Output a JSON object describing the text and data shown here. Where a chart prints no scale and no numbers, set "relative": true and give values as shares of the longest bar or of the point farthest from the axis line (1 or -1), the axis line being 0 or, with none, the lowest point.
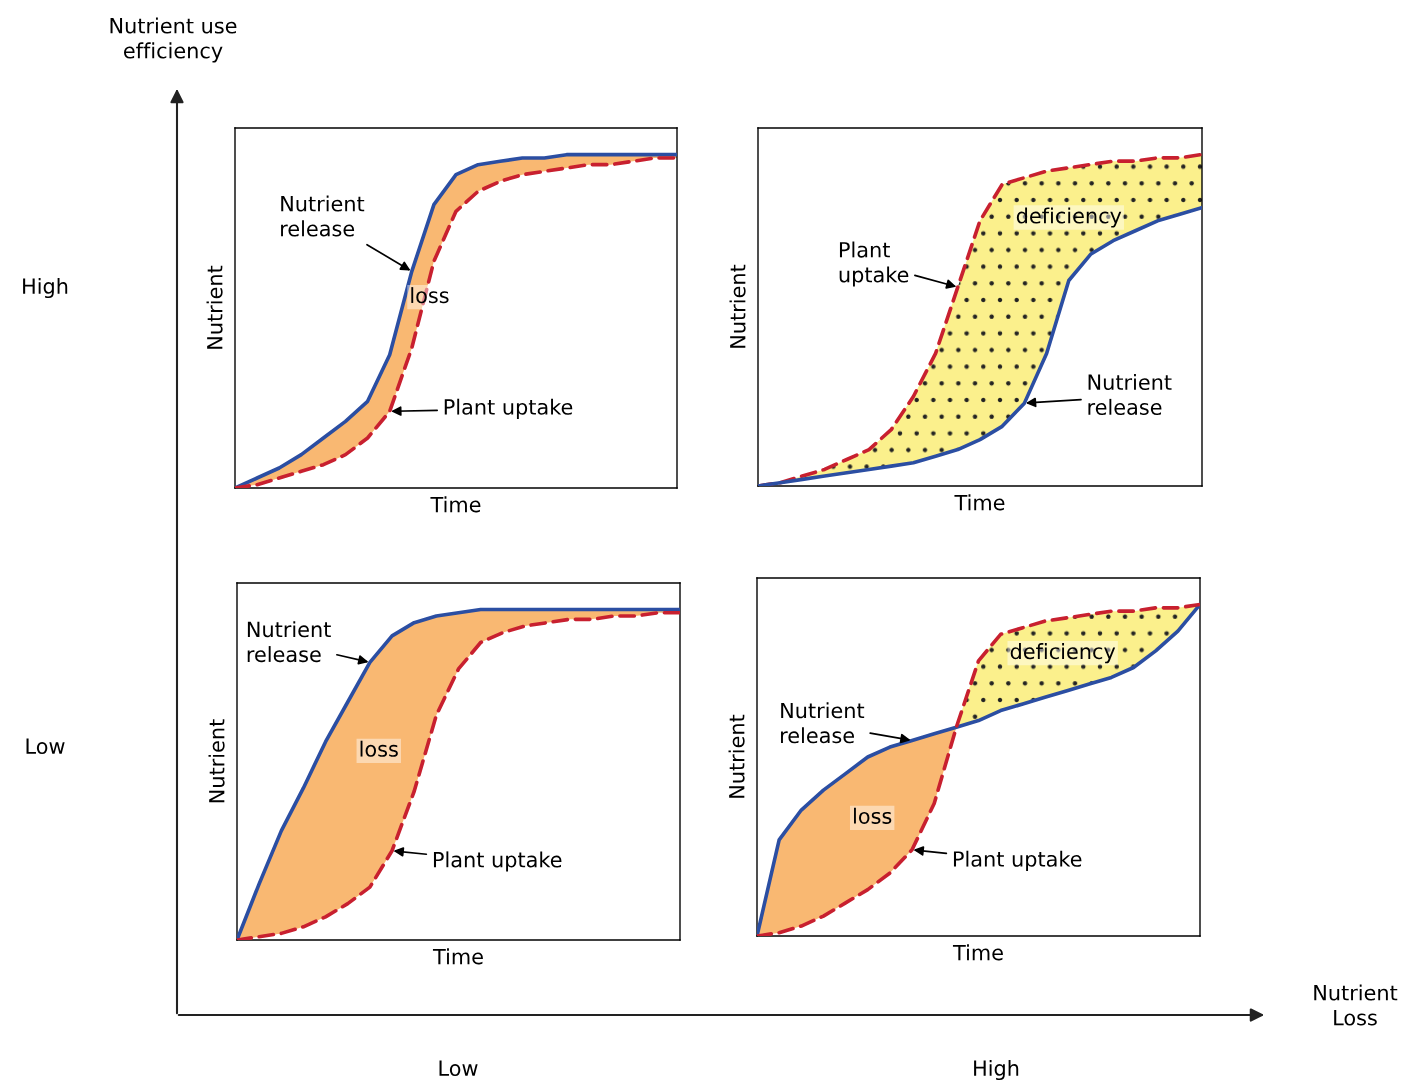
{
  "chart_data": [
    {
      "type": "line",
      "relative": true,
      "xlabel": "Time",
      "ylabel": "Nutrient",
      "tick_labels": false,
      "annotations": [
        "loss"
      ],
      "categories": [
        null,
        null,
        null,
        null,
        null,
        null,
        null,
        null,
        null,
        null,
        null,
        null,
        null,
        null,
        null,
        null,
        null,
        null,
        null,
        null,
        null
      ],
      "series": [
        {
          "name": "Nutrient release",
          "color": "#2b4ea2",
          "line_style": "solid",
          "values": [
            0,
            0.03,
            0.06,
            0.1,
            0.15,
            0.2,
            0.26,
            0.4,
            0.65,
            0.85,
            0.94,
            0.97,
            0.98,
            0.99,
            0.99,
            1,
            1,
            1,
            1,
            1,
            1
          ],
          "lower": [
            0,
            0.01,
            0.03,
            0.05,
            0.07,
            0.1,
            0.15,
            0.23,
            0.42,
            0.68,
            0.83,
            0.89,
            0.92,
            0.94,
            0.95,
            0.96,
            0.97,
            0.97,
            0.98,
            0.99,
            0.99
          ],
          "upper": [
            0,
            0.03,
            0.06,
            0.1,
            0.15,
            0.2,
            0.26,
            0.4,
            0.65,
            0.85,
            0.94,
            0.97,
            0.98,
            0.99,
            0.99,
            1,
            1,
            1,
            1,
            1,
            1
          ]
        },
        {
          "name": "Plant uptake",
          "color": "#c8202f",
          "line_style": "dashed",
          "values": [
            0,
            0.01,
            0.03,
            0.05,
            0.07,
            0.1,
            0.15,
            0.23,
            0.42,
            0.68,
            0.83,
            0.89,
            0.92,
            0.94,
            0.95,
            0.96,
            0.97,
            0.97,
            0.98,
            0.99,
            0.99
          ]
        }
      ]
    },
    {
      "type": "line",
      "relative": true,
      "xlabel": "Time",
      "ylabel": "Nutrient",
      "tick_labels": false,
      "annotations": [
        "deficiency"
      ],
      "categories": [
        null,
        null,
        null,
        null,
        null,
        null,
        null,
        null,
        null,
        null,
        null,
        null,
        null,
        null,
        null,
        null,
        null,
        null,
        null,
        null,
        null
      ],
      "series": [
        {
          "name": "Plant uptake",
          "color": "#c8202f",
          "line_style": "dashed",
          "values": [
            0,
            0.01,
            0.03,
            0.05,
            0.08,
            0.11,
            0.17,
            0.27,
            0.4,
            0.6,
            0.8,
            0.91,
            0.93,
            0.95,
            0.96,
            0.97,
            0.98,
            0.98,
            0.99,
            0.99,
            1
          ],
          "lower": [
            0,
            0.01,
            0.02,
            0.03,
            0.04,
            0.05,
            0.06,
            0.07,
            0.09,
            0.11,
            0.14,
            0.18,
            0.25,
            0.4,
            0.62,
            0.7,
            0.74,
            0.77,
            0.8,
            0.82,
            0.84
          ],
          "upper": [
            0,
            0.01,
            0.03,
            0.05,
            0.08,
            0.11,
            0.17,
            0.27,
            0.4,
            0.6,
            0.8,
            0.91,
            0.93,
            0.95,
            0.96,
            0.97,
            0.98,
            0.98,
            0.99,
            0.99,
            1
          ]
        },
        {
          "name": "Nutrient release",
          "color": "#2b4ea2",
          "line_style": "solid",
          "values": [
            0,
            0.01,
            0.02,
            0.03,
            0.04,
            0.05,
            0.06,
            0.07,
            0.09,
            0.11,
            0.14,
            0.18,
            0.25,
            0.4,
            0.62,
            0.7,
            0.74,
            0.77,
            0.8,
            0.82,
            0.84
          ]
        }
      ]
    },
    {
      "type": "line",
      "relative": true,
      "xlabel": "Time",
      "ylabel": "Nutrient",
      "tick_labels": false,
      "annotations": [
        "loss"
      ],
      "categories": [
        null,
        null,
        null,
        null,
        null,
        null,
        null,
        null,
        null,
        null,
        null,
        null,
        null,
        null,
        null,
        null,
        null,
        null,
        null,
        null,
        null
      ],
      "series": [
        {
          "name": "Nutrient release",
          "color": "#2b4ea2",
          "line_style": "solid",
          "values": [
            0,
            0.17,
            0.33,
            0.46,
            0.6,
            0.72,
            0.84,
            0.92,
            0.96,
            0.98,
            0.99,
            1,
            1,
            1,
            1,
            1,
            1,
            1,
            1,
            1,
            1
          ],
          "lower": [
            0,
            0.01,
            0.02,
            0.04,
            0.07,
            0.11,
            0.16,
            0.27,
            0.45,
            0.68,
            0.82,
            0.9,
            0.93,
            0.95,
            0.96,
            0.97,
            0.97,
            0.98,
            0.98,
            0.99,
            0.99
          ],
          "upper": [
            0,
            0.17,
            0.33,
            0.46,
            0.6,
            0.72,
            0.84,
            0.92,
            0.96,
            0.98,
            0.99,
            1,
            1,
            1,
            1,
            1,
            1,
            1,
            1,
            1,
            1
          ]
        },
        {
          "name": "Plant uptake",
          "color": "#c8202f",
          "line_style": "dashed",
          "values": [
            0,
            0.01,
            0.02,
            0.04,
            0.07,
            0.11,
            0.16,
            0.27,
            0.45,
            0.68,
            0.82,
            0.9,
            0.93,
            0.95,
            0.96,
            0.97,
            0.97,
            0.98,
            0.98,
            0.99,
            0.99
          ]
        }
      ]
    },
    {
      "type": "line",
      "relative": true,
      "xlabel": "Time",
      "ylabel": "Nutrient",
      "tick_labels": false,
      "annotations": [
        "loss",
        "deficiency"
      ],
      "categories": [
        null,
        null,
        null,
        null,
        null,
        null,
        null,
        null,
        null,
        null,
        null,
        null,
        null,
        null,
        null,
        null,
        null,
        null,
        null,
        null,
        null
      ],
      "series": [
        {
          "name": "Nutrient release",
          "color": "#2b4ea2",
          "line_style": "solid",
          "values": [
            0,
            0.29,
            0.38,
            0.44,
            0.49,
            0.54,
            0.57,
            0.59,
            0.61,
            0.63,
            0.65,
            0.68,
            0.7,
            0.72,
            0.74,
            0.76,
            0.78,
            0.81,
            0.86,
            0.92,
            1
          ],
          "lower": [
            0,
            0.01,
            0.03,
            0.06,
            0.1,
            0.14,
            0.19,
            0.26,
            0.4,
            0.63,
            null,
            null,
            null,
            null,
            null,
            null,
            null,
            null,
            null,
            null,
            null
          ],
          "upper": [
            0,
            0.29,
            0.38,
            0.44,
            0.49,
            0.54,
            0.57,
            0.59,
            0.61,
            0.63,
            null,
            null,
            null,
            null,
            null,
            null,
            null,
            null,
            null,
            null,
            null
          ]
        },
        {
          "name": "Plant uptake",
          "color": "#c8202f",
          "line_style": "dashed",
          "values": [
            0,
            0.01,
            0.03,
            0.06,
            0.1,
            0.14,
            0.19,
            0.26,
            0.4,
            0.63,
            0.83,
            0.91,
            0.93,
            0.95,
            0.96,
            0.97,
            0.98,
            0.98,
            0.99,
            0.99,
            1
          ],
          "lower": [
            null,
            null,
            null,
            null,
            null,
            null,
            null,
            null,
            null,
            0.63,
            0.65,
            0.68,
            0.7,
            0.72,
            0.74,
            0.76,
            0.78,
            0.81,
            0.86,
            0.92,
            1
          ],
          "upper": [
            null,
            null,
            null,
            null,
            null,
            null,
            null,
            null,
            null,
            0.63,
            0.83,
            0.91,
            0.93,
            0.95,
            0.96,
            0.97,
            0.98,
            0.98,
            0.99,
            0.99,
            1
          ]
        }
      ]
    },
    {
      "type": "other",
      "xlabel": "Nutrient Loss",
      "ylabel": "Nutrient use efficiency",
      "annotations": [
        "High",
        "Low",
        "Low",
        "High"
      ]
    }
  ]
}
